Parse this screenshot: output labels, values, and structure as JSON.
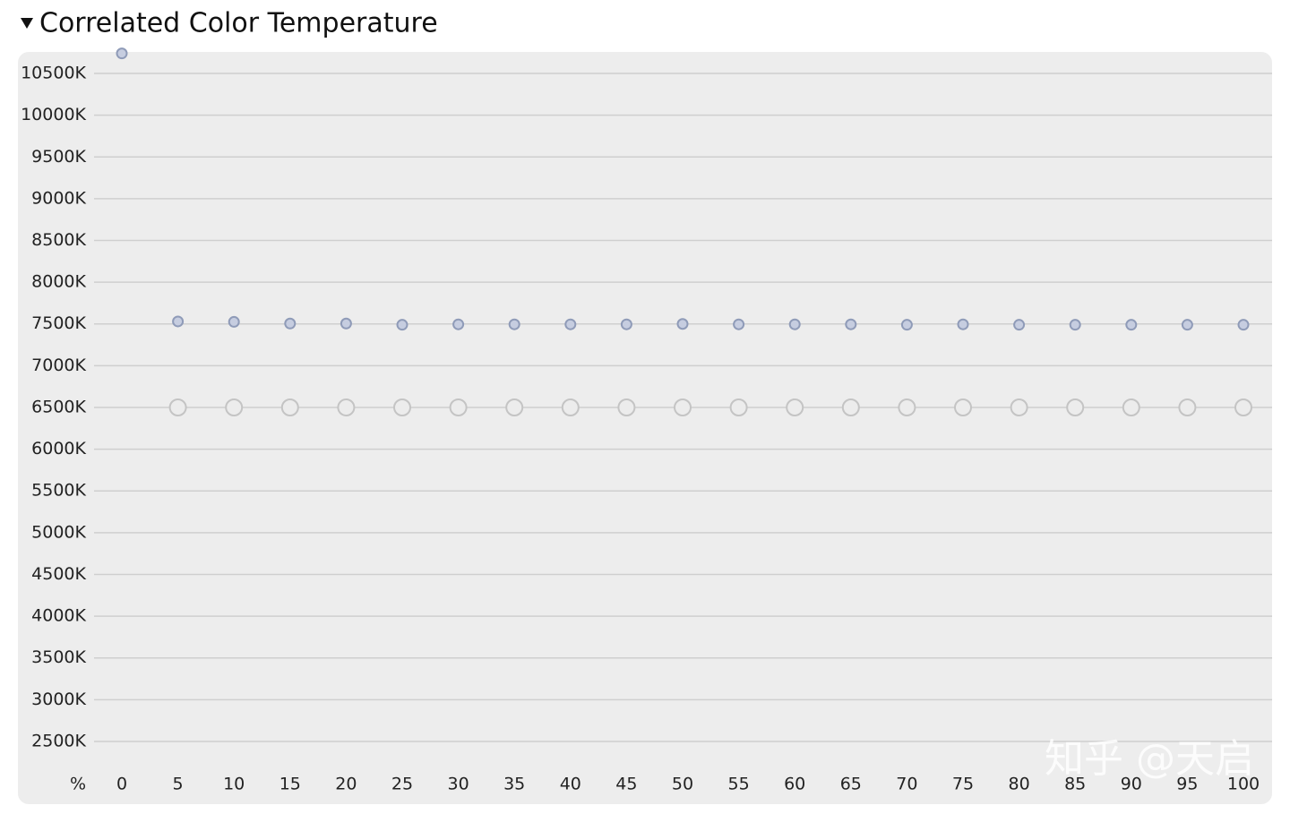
{
  "chart_data": {
    "type": "scatter",
    "title": "Correlated Color Temperature",
    "x_label": "%",
    "watermark": "知乎 @天启",
    "x": [
      0,
      5,
      10,
      15,
      20,
      25,
      30,
      35,
      40,
      45,
      50,
      55,
      60,
      65,
      70,
      75,
      80,
      85,
      90,
      95,
      100
    ],
    "xlim": [
      0,
      100
    ],
    "xticks": [
      0,
      5,
      10,
      15,
      20,
      25,
      30,
      35,
      40,
      45,
      50,
      55,
      60,
      65,
      70,
      75,
      80,
      85,
      90,
      95,
      100
    ],
    "ylim": [
      2000,
      10750
    ],
    "yticks": [
      {
        "value": 2500,
        "label": "2500K"
      },
      {
        "value": 3000,
        "label": "3000K"
      },
      {
        "value": 3500,
        "label": "3500K"
      },
      {
        "value": 4000,
        "label": "4000K"
      },
      {
        "value": 4500,
        "label": "4500K"
      },
      {
        "value": 5000,
        "label": "5000K"
      },
      {
        "value": 5500,
        "label": "5500K"
      },
      {
        "value": 6000,
        "label": "6000K"
      },
      {
        "value": 6500,
        "label": "6500K"
      },
      {
        "value": 7000,
        "label": "7000K"
      },
      {
        "value": 7500,
        "label": "7500K"
      },
      {
        "value": 8000,
        "label": "8000K"
      },
      {
        "value": 8500,
        "label": "8500K"
      },
      {
        "value": 9000,
        "label": "9000K"
      },
      {
        "value": 9500,
        "label": "9500K"
      },
      {
        "value": 10000,
        "label": "10000K"
      },
      {
        "value": 10500,
        "label": "10500K"
      }
    ],
    "grid": true,
    "series": [
      {
        "color": "#c6cde0",
        "values": [
          10740,
          7530,
          7525,
          7505,
          7505,
          7490,
          7495,
          7495,
          7495,
          7495,
          7500,
          7495,
          7495,
          7495,
          7490,
          7495,
          7490,
          7490,
          7490,
          7490,
          7490
        ]
      },
      {
        "color": "#c4c4c4",
        "values": [
          null,
          6500,
          6500,
          6500,
          6500,
          6500,
          6500,
          6500,
          6500,
          6500,
          6500,
          6500,
          6500,
          6500,
          6500,
          6500,
          6500,
          6500,
          6500,
          6500,
          6500
        ]
      }
    ]
  }
}
